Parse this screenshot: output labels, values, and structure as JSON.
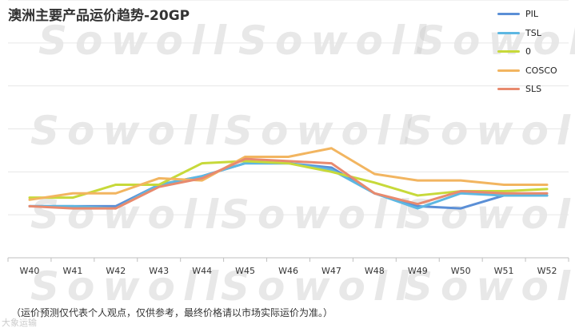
{
  "chart_data": {
    "type": "line",
    "title": "澳洲主要产品运价趋势-20GP",
    "categories": [
      "W40",
      "W41",
      "W42",
      "W43",
      "W44",
      "W45",
      "W46",
      "W47",
      "W48",
      "W49",
      "W50",
      "W51",
      "W52"
    ],
    "ylim": [
      0,
      6
    ],
    "grid": true,
    "legend_position": "top-right",
    "series": [
      {
        "name": "PIL",
        "color": "#5b8fd6",
        "values": [
          1.2,
          1.2,
          1.2,
          1.7,
          1.9,
          2.2,
          2.2,
          2.1,
          1.5,
          1.2,
          1.15,
          1.45,
          1.45
        ]
      },
      {
        "name": "TSL",
        "color": "#5db7e2",
        "values": [
          1.2,
          1.2,
          1.15,
          1.7,
          1.9,
          2.2,
          2.2,
          2.05,
          1.5,
          1.15,
          1.5,
          1.45,
          1.45
        ]
      },
      {
        "name": "0",
        "color": "#c7d93a",
        "values": [
          1.4,
          1.4,
          1.7,
          1.7,
          2.2,
          2.25,
          2.2,
          2.0,
          1.75,
          1.45,
          1.55,
          1.55,
          1.6
        ]
      },
      {
        "name": "COSCO",
        "color": "#f2b560",
        "values": [
          1.35,
          1.5,
          1.5,
          1.85,
          1.8,
          2.35,
          2.35,
          2.55,
          1.95,
          1.8,
          1.8,
          1.7,
          1.7
        ]
      },
      {
        "name": "SLS",
        "color": "#e88a6e",
        "values": [
          1.2,
          1.15,
          1.15,
          1.65,
          1.85,
          2.3,
          2.25,
          2.2,
          1.5,
          1.25,
          1.55,
          1.5,
          1.5
        ]
      }
    ]
  },
  "watermark_text": "Sowoll",
  "footnote": "（运价预测仅代表个人观点，仅供参考，最终价格请以市场实际运价为准。）",
  "source_mark": "大象运输"
}
